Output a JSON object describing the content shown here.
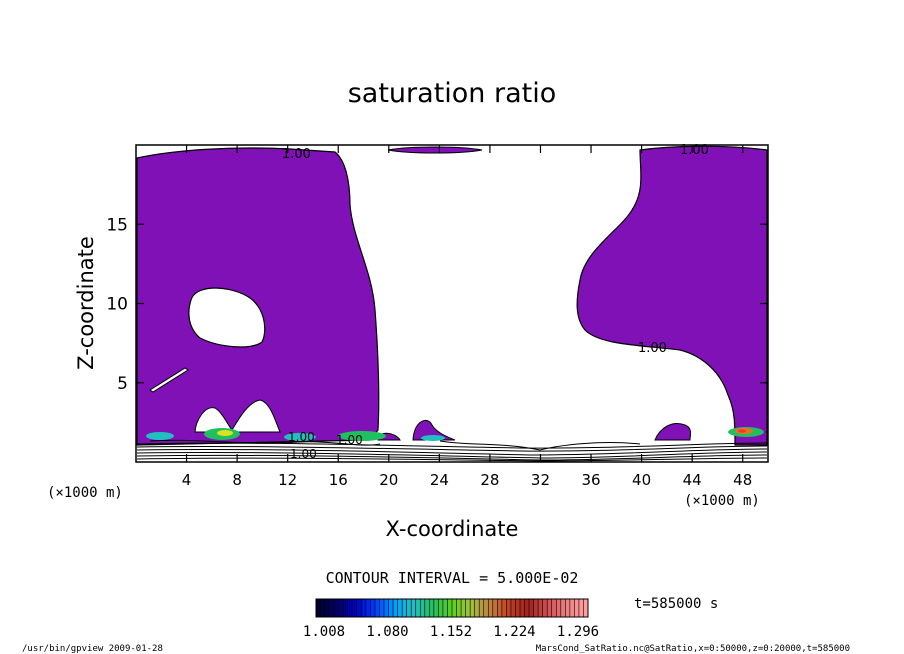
{
  "chart_data": {
    "type": "contour",
    "title": "saturation ratio",
    "xlabel": "X-coordinate",
    "ylabel": "Z-coordinate",
    "x_unit_note_left": "(×1000 m)",
    "x_unit_note_right": "(×1000 m)",
    "xlim": [
      0,
      50
    ],
    "ylim": [
      0,
      20
    ],
    "x_ticks": [
      4,
      8,
      12,
      16,
      20,
      24,
      28,
      32,
      36,
      40,
      44,
      48
    ],
    "y_ticks": [
      5,
      10,
      15
    ],
    "contour_labels": [
      "1.00",
      "1.00",
      "1.00",
      "1.00",
      "1.00",
      "1.00"
    ],
    "fill_color_main": "#7f11b7",
    "contour_interval": "CONTOUR INTERVAL = 5.000E-02",
    "time_label": "t=585000 s",
    "colorbar": {
      "tick_labels": [
        "1.008",
        "1.080",
        "1.152",
        "1.224",
        "1.296"
      ],
      "colors": [
        "#000030",
        "#00006a",
        "#0000c8",
        "#0040ff",
        "#00a0ff",
        "#20c0c0",
        "#20c060",
        "#60d020",
        "#a0c040",
        "#c08040",
        "#c04020",
        "#a02020",
        "#d05050",
        "#f08080",
        "#ffa0a0"
      ]
    },
    "footer_left": "/usr/bin/gpview  2009-01-28",
    "footer_right": "MarsCond_SatRatio.nc@SatRatio,x=0:50000,z=0:20000,t=585000"
  }
}
